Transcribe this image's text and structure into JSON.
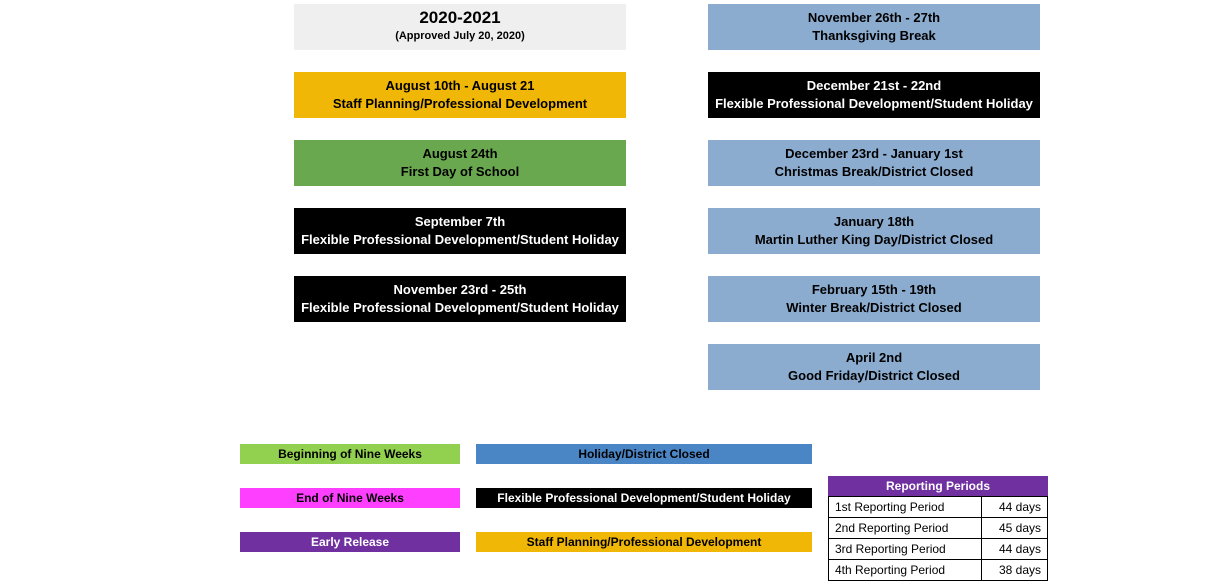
{
  "colors": {
    "header_bg": "#efefef",
    "amber": "#f1b706",
    "green": "#6aa84f",
    "black": "#000000",
    "blue": "#8baccf",
    "blue_strong": "#4a86c6",
    "lime": "#92d050",
    "magenta": "#ff3fff",
    "purple": "#7030a0",
    "white": "#ffffff",
    "text_black": "#000000"
  },
  "title": {
    "line1": "2020-2021",
    "line2": "(Approved July 20, 2020)"
  },
  "left": [
    {
      "date": "August 10th - August 21",
      "label": "Staff Planning/Professional Development",
      "bg": "amber",
      "fg": "text_black"
    },
    {
      "date": "August 24th",
      "label": "First Day of School",
      "bg": "green",
      "fg": "text_black"
    },
    {
      "date": "September 7th",
      "label": "Flexible Professional Development/Student Holiday",
      "bg": "black",
      "fg": "white"
    },
    {
      "date": "November 23rd - 25th",
      "label": "Flexible Professional Development/Student Holiday",
      "bg": "black",
      "fg": "white"
    }
  ],
  "right": [
    {
      "date": "November 26th - 27th",
      "label": "Thanksgiving Break",
      "bg": "blue",
      "fg": "text_black"
    },
    {
      "date": "December 21st - 22nd",
      "label": "Flexible Professional Development/Student Holiday",
      "bg": "black",
      "fg": "white"
    },
    {
      "date": "December 23rd - January 1st",
      "label": "Christmas Break/District Closed",
      "bg": "blue",
      "fg": "text_black"
    },
    {
      "date": "January 18th",
      "label": "Martin Luther King Day/District Closed",
      "bg": "blue",
      "fg": "text_black"
    },
    {
      "date": "February 15th - 19th",
      "label": "Winter Break/District Closed",
      "bg": "blue",
      "fg": "text_black"
    },
    {
      "date": "April 2nd",
      "label": "Good Friday/District Closed",
      "bg": "blue",
      "fg": "text_black"
    }
  ],
  "legend": [
    {
      "small": {
        "text": "Beginning of Nine Weeks",
        "bg": "lime",
        "fg": "text_black"
      },
      "big": {
        "text": "Holiday/District Closed",
        "bg": "blue_strong",
        "fg": "text_black"
      }
    },
    {
      "small": {
        "text": "End of Nine Weeks",
        "bg": "magenta",
        "fg": "text_black"
      },
      "big": {
        "text": "Flexible Professional Development/Student Holiday",
        "bg": "black",
        "fg": "white"
      }
    },
    {
      "small": {
        "text": "Early Release",
        "bg": "purple",
        "fg": "white"
      },
      "big": {
        "text": "Staff Planning/Professional Development",
        "bg": "amber",
        "fg": "text_black"
      }
    }
  ],
  "reporting": {
    "header": "Reporting Periods",
    "header_bg": "purple",
    "rows": [
      {
        "name": "1st Reporting Period",
        "days": "44 days"
      },
      {
        "name": "2nd Reporting Period",
        "days": "45 days"
      },
      {
        "name": "3rd Reporting Period",
        "days": "44 days"
      },
      {
        "name": "4th Reporting Period",
        "days": "38 days"
      }
    ]
  }
}
